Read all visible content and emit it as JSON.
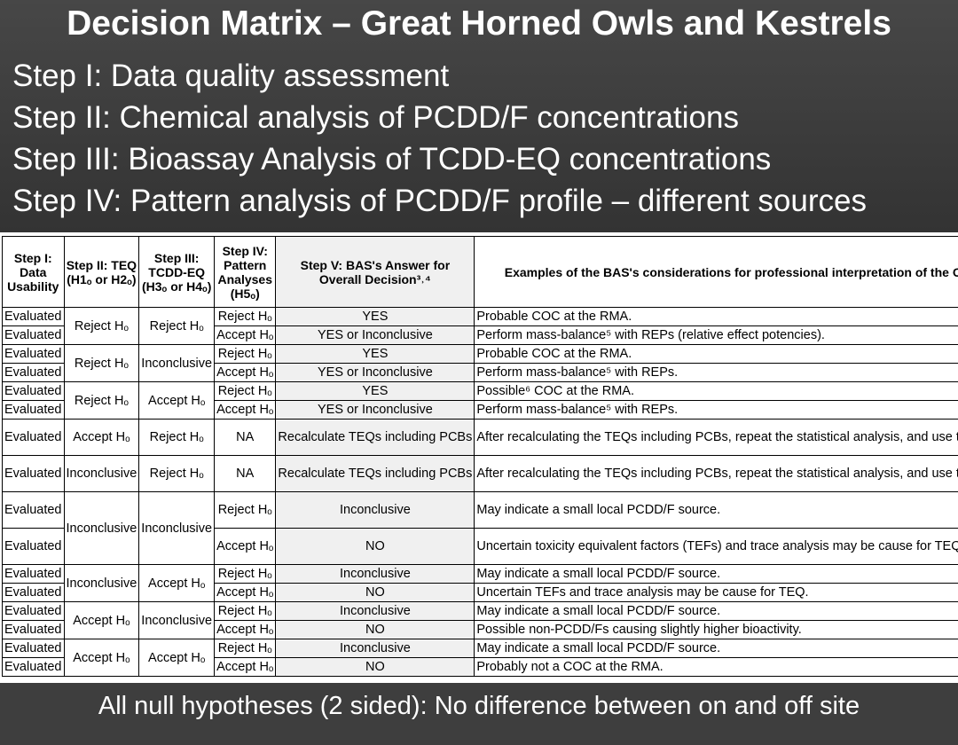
{
  "title": "Decision Matrix – Great Horned Owls and Kestrels",
  "steps": [
    "Step I:   Data quality assessment",
    "Step II:  Chemical analysis of PCDD/F concentrations",
    "Step III: Bioassay  Analysis of TCDD-EQ concentrations",
    "Step IV: Pattern analysis of PCDD/F profile – different sources"
  ],
  "headers": {
    "h1": "Step I: Data Usability",
    "h2": "Step II: TEQ (H1ₒ or H2ₒ)",
    "h3": "Step III: TCDD-EQ (H3ₒ or H4ₒ)",
    "h4": "Step IV: Pattern Analyses (H5ₒ)",
    "h5": "Step V: BAS's Answer for Overall Decision³˒⁴",
    "h6": "Examples of the BAS's considerations for professional interpretation of the Overall Decision"
  },
  "rows": [
    {
      "c1": "Evaluated",
      "c2": "Reject Hₒ",
      "c3": "Reject Hₒ",
      "c4": "Reject Hₒ",
      "c5": "YES",
      "c6": "Probable COC at the RMA."
    },
    {
      "c1": "Evaluated",
      "c4": "Accept Hₒ",
      "c5": "YES or Inconclusive",
      "c6": "Perform mass-balance⁵ with REPs (relative effect potencies)."
    },
    {
      "c1": "Evaluated",
      "c2": "Reject Hₒ",
      "c3": "Inconclusive",
      "c4": "Reject Hₒ",
      "c5": "YES",
      "c6": "Probable COC at the RMA."
    },
    {
      "c1": "Evaluated",
      "c4": "Accept Hₒ",
      "c5": "YES or Inconclusive",
      "c6": "Perform mass-balance⁵ with REPs."
    },
    {
      "c1": "Evaluated",
      "c2": "Reject Hₒ",
      "c3": "Accept Hₒ",
      "c4": "Reject Hₒ",
      "c5": "YES",
      "c6": "Possible⁶ COC at the RMA."
    },
    {
      "c1": "Evaluated",
      "c4": "Accept Hₒ",
      "c5": "YES or Inconclusive",
      "c6": "Perform mass-balance⁵ with REPs."
    },
    {
      "c1": "Evaluated",
      "c2": "Accept Hₒ",
      "c3": "Reject Hₒ",
      "c4": "NA",
      "c5": "Recalculate TEQs including PCBs",
      "c6": "After recalculating the TEQs including PCBs, repeat the statistical analysis, and use the sub-matrix below."
    },
    {
      "c1": "Evaluated",
      "c2": "Inconclusive",
      "c3": "Reject Hₒ",
      "c4": "NA",
      "c5": "Recalculate TEQs including PCBs",
      "c6": "After recalculating the TEQs including PCBs, repeat the statistical analysis, and use the sub-matrix below."
    },
    {
      "c1": "Evaluated",
      "c2": "Inconclusive",
      "c3": "Inconclusive",
      "c4": "Reject Hₒ",
      "c5": "Inconclusive",
      "c6": "May indicate a small local PCDD/F source."
    },
    {
      "c1": "Evaluated",
      "c4": "Accept Hₒ",
      "c5": "NO",
      "c6": "Uncertain toxicity equivalent factors (TEFs) and trace analysis may be cause for TEQ."
    },
    {
      "c1": "Evaluated",
      "c2": "Inconclusive",
      "c3": "Accept Hₒ",
      "c4": "Reject Hₒ",
      "c5": "Inconclusive",
      "c6": "May indicate a small local PCDD/F source."
    },
    {
      "c1": "Evaluated",
      "c4": "Accept Hₒ",
      "c5": "NO",
      "c6": "Uncertain TEFs and trace analysis may be cause for TEQ."
    },
    {
      "c1": "Evaluated",
      "c2": "Accept Hₒ",
      "c3": "Inconclusive",
      "c4": "Reject Hₒ",
      "c5": "Inconclusive",
      "c6": "May indicate a small local PCDD/F source."
    },
    {
      "c1": "Evaluated",
      "c4": "Accept Hₒ",
      "c5": "NO",
      "c6": "Possible non-PCDD/Fs causing slightly higher bioactivity."
    },
    {
      "c1": "Evaluated",
      "c2": "Accept Hₒ",
      "c3": "Accept Hₒ",
      "c4": "Reject Hₒ",
      "c5": "Inconclusive",
      "c6": "May indicate a small local PCDD/F source."
    },
    {
      "c1": "Evaluated",
      "c4": "Accept Hₒ",
      "c5": "NO",
      "c6": "Probably not a COC at the RMA."
    }
  ],
  "footer": "All null hypotheses (2 sided):  No difference between on and off site"
}
